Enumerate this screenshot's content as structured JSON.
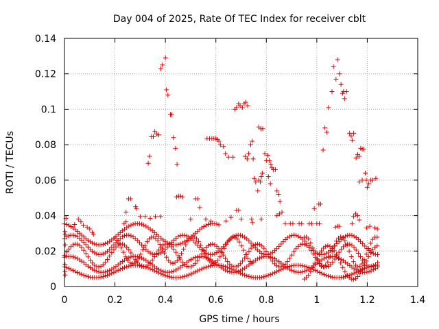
{
  "chart_data": {
    "type": "scatter",
    "title": "Day 004 of 2025, Rate Of TEC Index for receiver cblt",
    "xlabel": "GPS time / hours",
    "ylabel": "ROTI / TECUs",
    "xlim": [
      0,
      1.4
    ],
    "ylim": [
      0,
      0.14
    ],
    "xticks": [
      0,
      0.2,
      0.4,
      0.6,
      0.8,
      1,
      1.2,
      1.4
    ],
    "xtick_labels": [
      "0",
      "0.2",
      "0.4",
      "0.6",
      "0.8",
      "1",
      "1.2",
      "1.4"
    ],
    "yticks": [
      0,
      0.02,
      0.04,
      0.06,
      0.08,
      0.1,
      0.12,
      0.14
    ],
    "ytick_labels": [
      "0",
      "0.02",
      "0.04",
      "0.06",
      "0.08",
      "0.1",
      "0.12",
      "0.14"
    ],
    "grid": true,
    "marker": "+",
    "color": "#e00000",
    "series": [
      {
        "name": "ROTI",
        "points": [
          [
            0.332,
            0.0695
          ],
          [
            0.337,
            0.0735
          ],
          [
            0.345,
            0.0845
          ],
          [
            0.352,
            0.0845
          ],
          [
            0.358,
            0.0875
          ],
          [
            0.366,
            0.086
          ],
          [
            0.374,
            0.0855
          ],
          [
            0.382,
            0.123
          ],
          [
            0.388,
            0.125
          ],
          [
            0.4,
            0.129
          ],
          [
            0.404,
            0.111
          ],
          [
            0.41,
            0.108
          ],
          [
            0.42,
            0.097
          ],
          [
            0.425,
            0.097
          ],
          [
            0.432,
            0.084
          ],
          [
            0.44,
            0.078
          ],
          [
            0.446,
            0.069
          ],
          [
            0.444,
            0.0505
          ],
          [
            0.452,
            0.051
          ],
          [
            0.46,
            0.051
          ],
          [
            0.468,
            0.0505
          ],
          [
            0.52,
            0.0495
          ],
          [
            0.528,
            0.0495
          ],
          [
            0.536,
            0.0445
          ],
          [
            0.565,
            0.0835
          ],
          [
            0.575,
            0.0835
          ],
          [
            0.584,
            0.0835
          ],
          [
            0.592,
            0.0835
          ],
          [
            0.6,
            0.0835
          ],
          [
            0.606,
            0.083
          ],
          [
            0.612,
            0.082
          ],
          [
            0.618,
            0.08
          ],
          [
            0.63,
            0.079
          ],
          [
            0.638,
            0.075
          ],
          [
            0.65,
            0.073
          ],
          [
            0.668,
            0.073
          ],
          [
            0.675,
            0.1
          ],
          [
            0.682,
            0.101
          ],
          [
            0.69,
            0.103
          ],
          [
            0.696,
            0.102
          ],
          [
            0.705,
            0.101
          ],
          [
            0.712,
            0.103
          ],
          [
            0.718,
            0.104
          ],
          [
            0.726,
            0.102
          ],
          [
            0.716,
            0.0735
          ],
          [
            0.724,
            0.072
          ],
          [
            0.73,
            0.075
          ],
          [
            0.738,
            0.08
          ],
          [
            0.744,
            0.082
          ],
          [
            0.748,
            0.072
          ],
          [
            0.752,
            0.061
          ],
          [
            0.758,
            0.059
          ],
          [
            0.766,
            0.054
          ],
          [
            0.77,
            0.06
          ],
          [
            0.776,
            0.059
          ],
          [
            0.78,
            0.062
          ],
          [
            0.784,
            0.064
          ],
          [
            0.77,
            0.09
          ],
          [
            0.778,
            0.089
          ],
          [
            0.786,
            0.089
          ],
          [
            0.794,
            0.075
          ],
          [
            0.8,
            0.071
          ],
          [
            0.806,
            0.074
          ],
          [
            0.812,
            0.071
          ],
          [
            0.818,
            0.069
          ],
          [
            0.822,
            0.067
          ],
          [
            0.828,
            0.066
          ],
          [
            0.836,
            0.066
          ],
          [
            0.808,
            0.062
          ],
          [
            0.816,
            0.058
          ],
          [
            0.842,
            0.054
          ],
          [
            0.848,
            0.052
          ],
          [
            0.854,
            0.048
          ],
          [
            0.842,
            0.04
          ],
          [
            0.852,
            0.041
          ],
          [
            0.862,
            0.042
          ],
          [
            0.682,
            0.043
          ],
          [
            0.69,
            0.043
          ],
          [
            0.64,
            0.037
          ],
          [
            0.66,
            0.039
          ],
          [
            0.7,
            0.038
          ],
          [
            0.742,
            0.038
          ],
          [
            0.745,
            0.036
          ],
          [
            0.78,
            0.038
          ],
          [
            0.875,
            0.0355
          ],
          [
            0.895,
            0.0355
          ],
          [
            0.905,
            0.0355
          ],
          [
            0.93,
            0.0355
          ],
          [
            0.94,
            0.0355
          ],
          [
            0.97,
            0.0355
          ],
          [
            0.98,
            0.0355
          ],
          [
            1.0,
            0.0355
          ],
          [
            1.01,
            0.0355
          ],
          [
            0.99,
            0.044
          ],
          [
            1.008,
            0.0465
          ],
          [
            1.015,
            0.0465
          ],
          [
            1.025,
            0.077
          ],
          [
            1.032,
            0.0895
          ],
          [
            1.04,
            0.087
          ],
          [
            1.046,
            0.101
          ],
          [
            1.06,
            0.11
          ],
          [
            1.066,
            0.124
          ],
          [
            1.076,
            0.117
          ],
          [
            1.082,
            0.128
          ],
          [
            1.09,
            0.12
          ],
          [
            1.096,
            0.114
          ],
          [
            1.102,
            0.109
          ],
          [
            1.11,
            0.106
          ],
          [
            1.118,
            0.11
          ],
          [
            1.106,
            0.11
          ],
          [
            1.074,
            0.0335
          ],
          [
            1.082,
            0.034
          ],
          [
            1.088,
            0.034
          ],
          [
            1.13,
            0.0865
          ],
          [
            1.136,
            0.085
          ],
          [
            1.14,
            0.0825
          ],
          [
            1.146,
            0.0865
          ],
          [
            1.156,
            0.0725
          ],
          [
            1.162,
            0.0745
          ],
          [
            1.168,
            0.0735
          ],
          [
            1.174,
            0.078
          ],
          [
            1.18,
            0.0775
          ],
          [
            1.186,
            0.0775
          ],
          [
            1.168,
            0.059
          ],
          [
            1.18,
            0.06
          ],
          [
            1.192,
            0.064
          ],
          [
            1.196,
            0.06
          ],
          [
            1.2,
            0.056
          ],
          [
            1.206,
            0.058
          ],
          [
            1.214,
            0.06
          ],
          [
            1.222,
            0.06
          ],
          [
            1.234,
            0.061
          ],
          [
            1.14,
            0.0355
          ],
          [
            1.146,
            0.0395
          ],
          [
            1.154,
            0.041
          ],
          [
            1.162,
            0.04
          ],
          [
            1.168,
            0.0375
          ],
          [
            1.198,
            0.033
          ],
          [
            1.21,
            0.034
          ],
          [
            1.23,
            0.033
          ],
          [
            1.24,
            0.0325
          ],
          [
            0.244,
            0.042
          ],
          [
            0.254,
            0.0495
          ],
          [
            0.262,
            0.0495
          ],
          [
            0.282,
            0.045
          ],
          [
            0.285,
            0.044
          ],
          [
            0.3,
            0.0395
          ],
          [
            0.32,
            0.0395
          ],
          [
            0.34,
            0.0385
          ],
          [
            0.36,
            0.0395
          ],
          [
            0.38,
            0.0395
          ],
          [
            0.236,
            0.0355
          ],
          [
            0.244,
            0.0365
          ],
          [
            0.5,
            0.038
          ],
          [
            0.56,
            0.038
          ],
          [
            0.58,
            0.037
          ],
          [
            0.002,
            0.031
          ],
          [
            0.006,
            0.0385
          ],
          [
            0.04,
            0.035
          ],
          [
            0.055,
            0.038
          ],
          [
            0.065,
            0.0365
          ],
          [
            0.075,
            0.0345
          ],
          [
            0.09,
            0.0335
          ],
          [
            0.1,
            0.0325
          ],
          [
            0.11,
            0.0305
          ],
          [
            0.115,
            0.0295
          ],
          [
            0.003,
            0.0295
          ],
          [
            0.003,
            0.0235
          ],
          [
            0.002,
            0.0175
          ],
          [
            0.002,
            0.0125
          ],
          [
            0.002,
            0.0085
          ],
          [
            0.003,
            0.0065
          ]
        ],
        "bands": [
          {
            "x_start": 0.0,
            "x_end": 1.245,
            "baseline": 0.0175,
            "amplitude": 0.0065,
            "period": 0.18,
            "phase": 0.0
          },
          {
            "x_start": 0.0,
            "x_end": 1.245,
            "baseline": 0.0125,
            "amplitude": 0.0045,
            "period": 0.26,
            "phase": 1.1
          },
          {
            "x_start": 0.0,
            "x_end": 1.245,
            "baseline": 0.0085,
            "amplitude": 0.0035,
            "period": 0.32,
            "phase": 2.3
          },
          {
            "x_start": 0.0,
            "x_end": 1.245,
            "baseline": 0.0235,
            "amplitude": 0.0055,
            "period": 0.22,
            "phase": 0.7
          },
          {
            "x_start": 0.0,
            "x_end": 0.62,
            "baseline": 0.0295,
            "amplitude": 0.006,
            "period": 0.3,
            "phase": 1.8
          },
          {
            "x_start": 0.2,
            "x_end": 0.75,
            "baseline": 0.0205,
            "amplitude": 0.0075,
            "period": 0.16,
            "phase": 0.4
          },
          {
            "x_start": 0.95,
            "x_end": 1.245,
            "baseline": 0.0195,
            "amplitude": 0.0085,
            "period": 0.14,
            "phase": 2.7
          },
          {
            "x_start": 0.95,
            "x_end": 1.245,
            "baseline": 0.0135,
            "amplitude": 0.0095,
            "period": 0.2,
            "phase": 0.2
          }
        ]
      }
    ]
  }
}
